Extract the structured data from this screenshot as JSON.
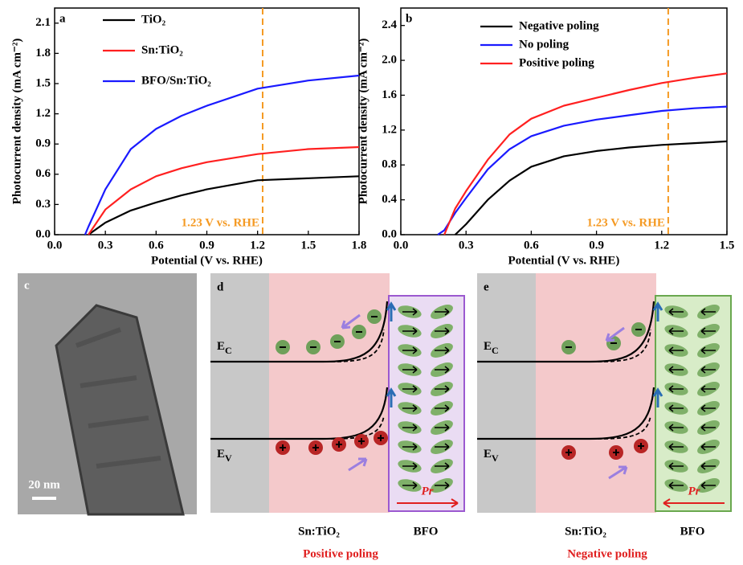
{
  "chart_data": [
    {
      "type": "line",
      "panel_label": "a",
      "xlabel": "Potential (V vs. RHE)",
      "ylabel": "Photocurrent density (mA cm⁻²)",
      "x": [
        0.18,
        0.2,
        0.3,
        0.45,
        0.6,
        0.75,
        0.9,
        1.2,
        1.5,
        1.8
      ],
      "series": [
        {
          "name": "TiO₂",
          "color": "#000000",
          "values": [
            null,
            0,
            0.12,
            0.24,
            0.32,
            0.39,
            0.45,
            0.54,
            0.56,
            0.58
          ]
        },
        {
          "name": "Sn:TiO₂",
          "color": "#ff2020",
          "values": [
            null,
            0,
            0.25,
            0.45,
            0.58,
            0.66,
            0.72,
            0.8,
            0.85,
            0.87
          ]
        },
        {
          "name": "BFO/Sn:TiO₂",
          "color": "#1a1aff",
          "values": [
            0,
            0.08,
            0.45,
            0.85,
            1.05,
            1.18,
            1.28,
            1.45,
            1.53,
            1.58
          ]
        }
      ],
      "xlim": [
        0,
        1.8
      ],
      "xticks": [
        {
          "value": 0,
          "label": "0.0"
        },
        0.3,
        0.6,
        0.9,
        1.2,
        1.5,
        1.8
      ],
      "ylim": [
        0,
        2.25
      ],
      "yticks": [
        {
          "value": 0,
          "label": "0.0"
        },
        0.3,
        0.6,
        0.9,
        1.2,
        1.5,
        1.8,
        2.1
      ],
      "vline": 1.23,
      "vline_color": "#f59a23",
      "annotation": "1.23 V vs. RHE"
    },
    {
      "type": "line",
      "panel_label": "b",
      "xlabel": "Potential (V vs. RHE)",
      "ylabel": "Photocurrent density (mA cm⁻²)",
      "x": [
        0.17,
        0.2,
        0.25,
        0.3,
        0.4,
        0.5,
        0.6,
        0.75,
        0.9,
        1.05,
        1.2,
        1.35,
        1.5
      ],
      "series": [
        {
          "name": "Negative poling",
          "color": "#000000",
          "values": [
            null,
            null,
            0,
            0.12,
            0.4,
            0.62,
            0.78,
            0.9,
            0.96,
            1.0,
            1.03,
            1.05,
            1.07
          ]
        },
        {
          "name": "No poling",
          "color": "#1a1aff",
          "values": [
            0,
            0.05,
            0.25,
            0.42,
            0.75,
            0.98,
            1.13,
            1.25,
            1.32,
            1.37,
            1.42,
            1.45,
            1.47
          ]
        },
        {
          "name": "Positive poling",
          "color": "#ff2020",
          "values": [
            null,
            0,
            0.3,
            0.5,
            0.86,
            1.15,
            1.33,
            1.48,
            1.57,
            1.66,
            1.74,
            1.8,
            1.85
          ]
        }
      ],
      "xlim": [
        0,
        1.5
      ],
      "xticks": [
        {
          "value": 0,
          "label": "0.0"
        },
        0.3,
        0.6,
        0.9,
        1.2,
        1.5
      ],
      "ylim": [
        0,
        2.6
      ],
      "yticks": [
        {
          "value": 0,
          "label": "0.0"
        },
        0.4,
        0.8,
        1.2,
        1.6,
        {
          "value": 2,
          "label": "2.0"
        },
        2.4
      ],
      "vline": 1.23,
      "vline_color": "#f59a23",
      "annotation": "1.23 V vs. RHE"
    }
  ],
  "panels": {
    "c": {
      "label": "c",
      "scale_bar": "20 nm"
    },
    "d": {
      "label": "d",
      "ec": {
        "base": "E",
        "sub": "C"
      },
      "ev": {
        "base": "E",
        "sub": "V"
      },
      "left_layer": "Sn:TiO₂",
      "right_layer": "BFO",
      "polarization": "Pr",
      "caption": "Positive poling"
    },
    "e": {
      "label": "e",
      "ec": {
        "base": "E",
        "sub": "C"
      },
      "ev": {
        "base": "E",
        "sub": "V"
      },
      "left_layer": "Sn:TiO₂",
      "right_layer": "BFO",
      "polarization": "Pr",
      "caption": "Negative poling"
    }
  }
}
